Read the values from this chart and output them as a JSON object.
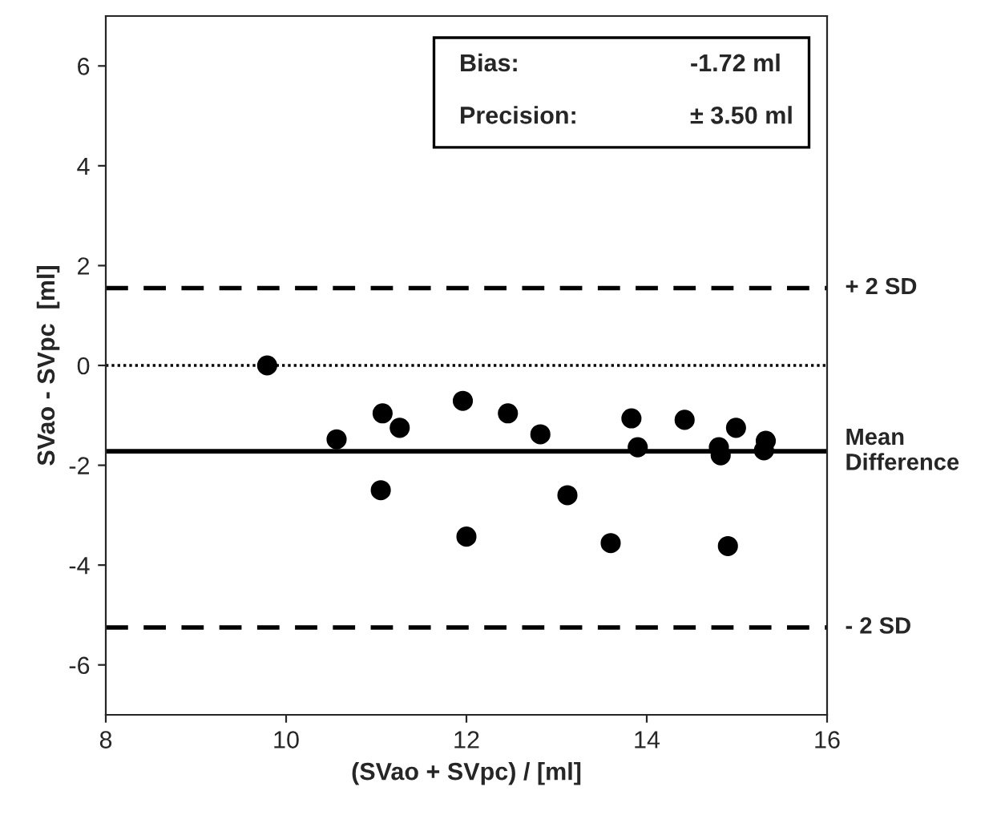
{
  "chart_data": {
    "type": "scatter",
    "xlabel": "(SVao + SVpc) / [ml]",
    "ylabel": "SVao - SVpc  [ml]",
    "xlim": [
      8,
      16
    ],
    "xticks": [
      8,
      10,
      12,
      14,
      16
    ],
    "ylim": [
      -7,
      7
    ],
    "yticks": [
      -6,
      -4,
      -2,
      0,
      2,
      4,
      6
    ],
    "grid": false,
    "marker": "circle",
    "series": [
      {
        "color": "#000000",
        "x": [
          9.79,
          10.56,
          11.07,
          11.26,
          11.05,
          11.96,
          12.0,
          12.46,
          12.82,
          13.12,
          13.6,
          13.83,
          13.9,
          14.42,
          14.8,
          14.82,
          14.99,
          14.9,
          15.32,
          15.3
        ],
        "values": [
          0,
          -1.48,
          -0.96,
          -1.25,
          -2.5,
          -0.71,
          -3.43,
          -0.96,
          -1.38,
          -2.6,
          -3.56,
          -1.06,
          -1.64,
          -1.09,
          -1.64,
          -1.8,
          -1.25,
          -3.62,
          -1.51,
          -1.7
        ]
      }
    ],
    "ref_lines": [
      {
        "axis": "y",
        "value": 1.55,
        "label": "+ 2 SD",
        "line_style": "dashed",
        "color": "#000000"
      },
      {
        "axis": "y",
        "value": 0,
        "line_style": "dotted",
        "color": "#000000"
      },
      {
        "axis": "y",
        "value": -1.72,
        "label": "Mean\nDifference",
        "line_style": "solid",
        "color": "#000000"
      },
      {
        "axis": "y",
        "value": -5.25,
        "label": "- 2 SD",
        "line_style": "dashed",
        "color": "#000000"
      }
    ],
    "annotations": [
      "Bias:",
      "-1.72 ml",
      "Precision:",
      "± 3.50 ml"
    ]
  }
}
